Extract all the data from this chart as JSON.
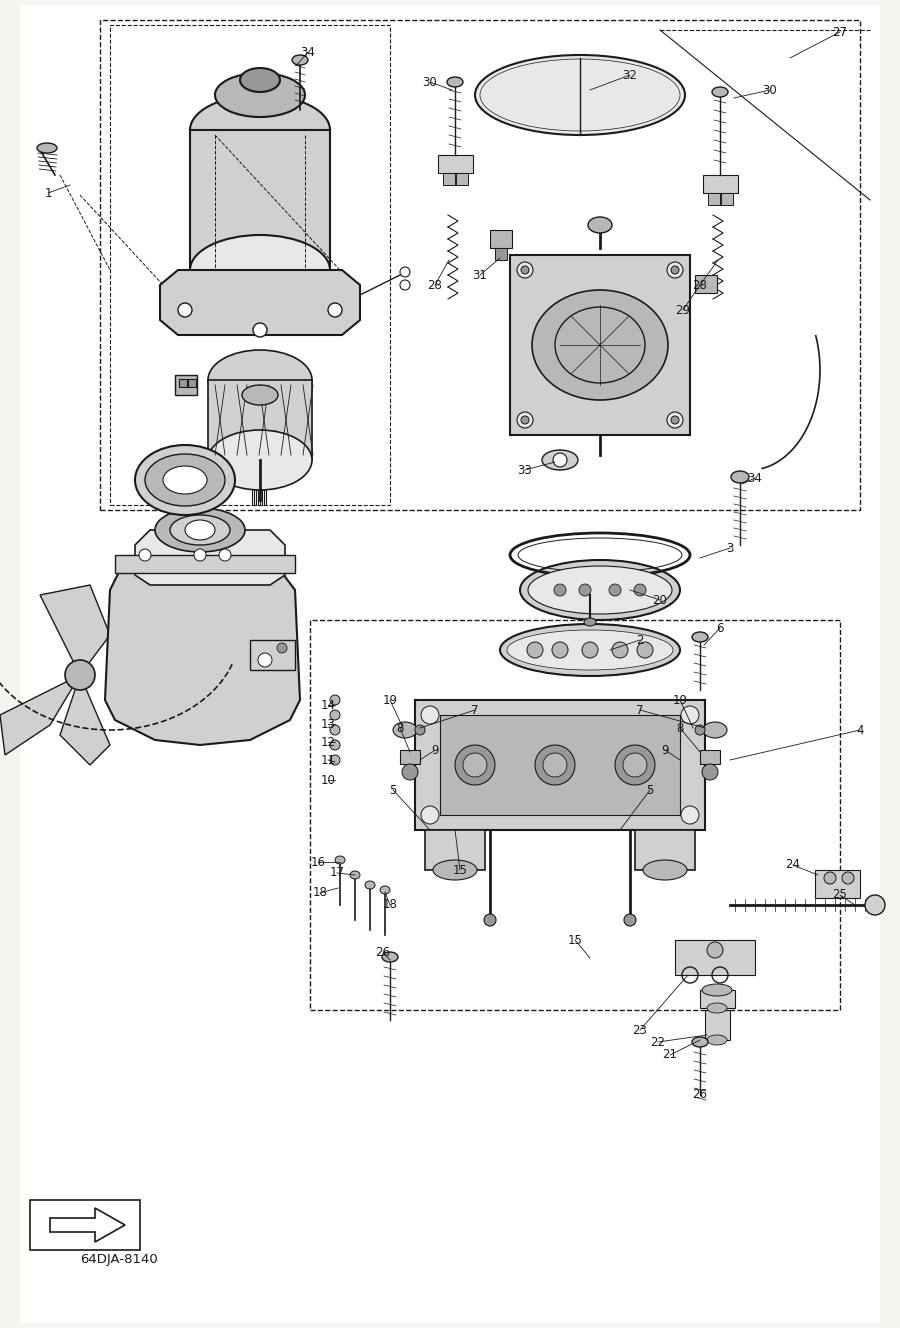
{
  "bg_color": "#f5f5f0",
  "line_color": "#1a1a1a",
  "diagram_code": "64DJA-8140",
  "figsize": [
    9.0,
    13.28
  ],
  "dpi": 100,
  "white": "#ffffff",
  "gray1": "#e8e8e8",
  "gray2": "#d0d0d0",
  "gray3": "#b8b8b8",
  "gray4": "#989898"
}
